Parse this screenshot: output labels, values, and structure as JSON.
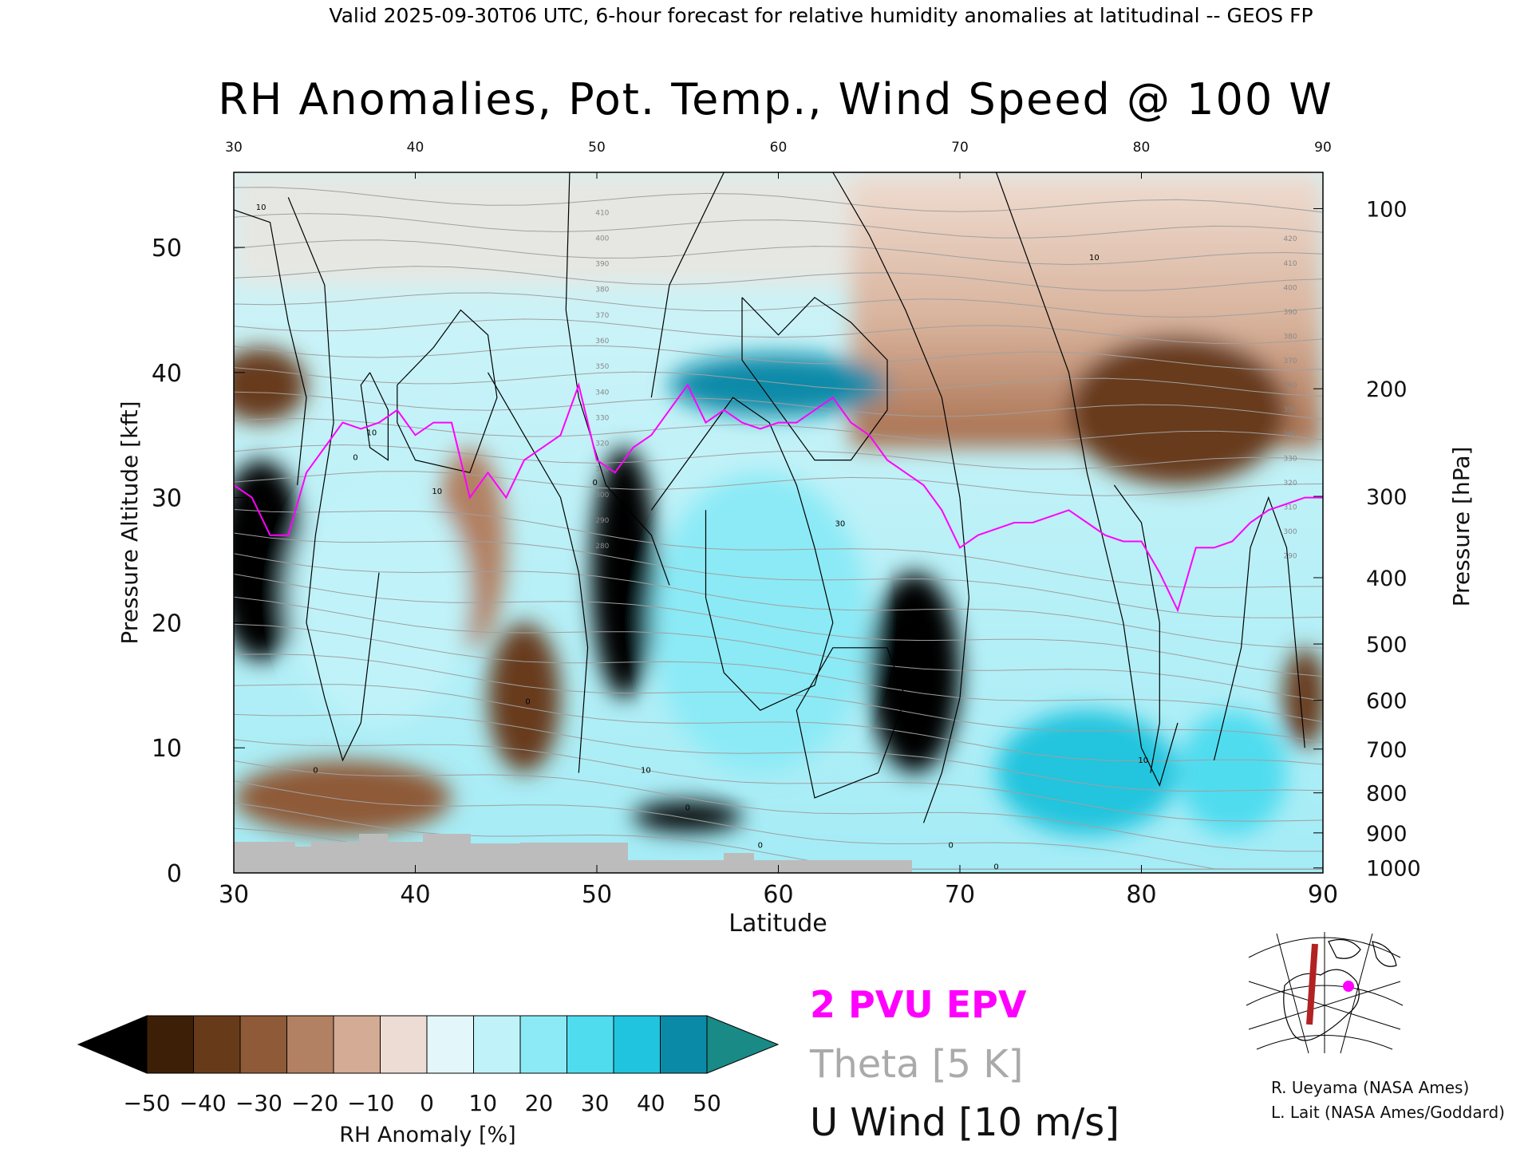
{
  "header": "Valid 2025-09-30T06 UTC, 6-hour forecast for relative humidity anomalies at latitudinal -- GEOS FP",
  "chart_data": {
    "type": "heatmap",
    "title": "RH Anomalies, Pot. Temp., Wind Speed @ 100 W",
    "xlabel": "Latitude",
    "ylabel_left": "Pressure Altitude [kft]",
    "ylabel_right": "Pressure [hPa]",
    "xlim": [
      30,
      90
    ],
    "ylim": [
      0,
      56
    ],
    "x_ticks": [
      30,
      40,
      50,
      60,
      70,
      80,
      90
    ],
    "y_ticks": [
      0,
      10,
      20,
      30,
      40,
      50
    ],
    "pressure_ticks": [
      {
        "hPa": 100,
        "kft": 53.1
      },
      {
        "hPa": 200,
        "kft": 38.7
      },
      {
        "hPa": 300,
        "kft": 30.1
      },
      {
        "hPa": 400,
        "kft": 23.6
      },
      {
        "hPa": 500,
        "kft": 18.3
      },
      {
        "hPa": 600,
        "kft": 13.8
      },
      {
        "hPa": 700,
        "kft": 9.9
      },
      {
        "hPa": 800,
        "kft": 6.4
      },
      {
        "hPa": 900,
        "kft": 3.2
      },
      {
        "hPa": 1000,
        "kft": 0.4
      }
    ],
    "colorbar": {
      "label": "RH Anomaly [%]",
      "tick_labels": [
        "−50",
        "−40",
        "−30",
        "−20",
        "−10",
        "0",
        "10",
        "20",
        "30",
        "40",
        "50"
      ],
      "colors": [
        "#000000",
        "#3d1f08",
        "#673a1a",
        "#8e5a37",
        "#b28062",
        "#d4ab95",
        "#ecdcd3",
        "#e3f7fb",
        "#c0f3f9",
        "#8beaf6",
        "#50dcef",
        "#20c4de",
        "#0b8aa8",
        "#1a8a86"
      ]
    },
    "rh_anomaly_features": [
      {
        "lat": 31.5,
        "kft": 25,
        "rh": -55,
        "spread_lat": 2.5,
        "spread_kft": 8
      },
      {
        "lat": 31.5,
        "kft": 39,
        "rh": -40,
        "spread_lat": 2.5,
        "spread_kft": 3
      },
      {
        "lat": 36,
        "kft": 6,
        "rh": -25,
        "spread_lat": 6,
        "spread_kft": 3
      },
      {
        "lat": 43,
        "kft": 26,
        "rh": -20,
        "spread_lat": 2,
        "spread_kft": 8
      },
      {
        "lat": 46,
        "kft": 14,
        "rh": -35,
        "spread_lat": 2,
        "spread_kft": 6
      },
      {
        "lat": 51.5,
        "kft": 24,
        "rh": -55,
        "spread_lat": 1.8,
        "spread_kft": 10
      },
      {
        "lat": 55,
        "kft": 4.5,
        "rh": -55,
        "spread_lat": 3,
        "spread_kft": 1.2
      },
      {
        "lat": 67.5,
        "kft": 16,
        "rh": -55,
        "spread_lat": 2.5,
        "spread_kft": 8
      },
      {
        "lat": 82,
        "kft": 37,
        "rh": -40,
        "spread_lat": 6,
        "spread_kft": 6
      },
      {
        "lat": 89,
        "kft": 14,
        "rh": -40,
        "spread_lat": 1.2,
        "spread_kft": 4
      },
      {
        "lat": 60,
        "kft": 39,
        "rh": 50,
        "spread_lat": 6,
        "spread_kft": 2.5
      },
      {
        "lat": 38,
        "kft": 22,
        "rh": 15,
        "spread_lat": 5,
        "spread_kft": 10
      },
      {
        "lat": 59,
        "kft": 20,
        "rh": 20,
        "spread_lat": 6,
        "spread_kft": 12
      },
      {
        "lat": 77,
        "kft": 8,
        "rh": 40,
        "spread_lat": 5,
        "spread_kft": 5
      },
      {
        "lat": 85,
        "kft": 8,
        "rh": 35,
        "spread_lat": 3,
        "spread_kft": 5
      }
    ],
    "overlays": [
      {
        "name": "2 PVU EPV",
        "color": "#ff00ff"
      },
      {
        "name": "Theta [5 K]",
        "color": "#aaaaaa"
      },
      {
        "name": "U Wind [10 m/s]",
        "color": "#000000"
      }
    ],
    "epv_2pvu_kft": [
      [
        30,
        31
      ],
      [
        31,
        30
      ],
      [
        32,
        27
      ],
      [
        33,
        27
      ],
      [
        34,
        32
      ],
      [
        35,
        34
      ],
      [
        36,
        36
      ],
      [
        37,
        35.5
      ],
      [
        38,
        36
      ],
      [
        39,
        37
      ],
      [
        40,
        35
      ],
      [
        41,
        36
      ],
      [
        42,
        36
      ],
      [
        43,
        30
      ],
      [
        44,
        32
      ],
      [
        45,
        30
      ],
      [
        46,
        33
      ],
      [
        47,
        34
      ],
      [
        48,
        35
      ],
      [
        49,
        39
      ],
      [
        50,
        33
      ],
      [
        51,
        32
      ],
      [
        52,
        34
      ],
      [
        53,
        35
      ],
      [
        54,
        37
      ],
      [
        55,
        39
      ],
      [
        56,
        36
      ],
      [
        57,
        37
      ],
      [
        58,
        36
      ],
      [
        59,
        35.5
      ],
      [
        60,
        36
      ],
      [
        61,
        36
      ],
      [
        62,
        37
      ],
      [
        63,
        38
      ],
      [
        64,
        36
      ],
      [
        65,
        35
      ],
      [
        66,
        33
      ],
      [
        67,
        32
      ],
      [
        68,
        31
      ],
      [
        69,
        29
      ],
      [
        70,
        26
      ],
      [
        71,
        27
      ],
      [
        72,
        27.5
      ],
      [
        73,
        28
      ],
      [
        74,
        28
      ],
      [
        75,
        28.5
      ],
      [
        76,
        29
      ],
      [
        77,
        28
      ],
      [
        78,
        27
      ],
      [
        79,
        26.5
      ],
      [
        80,
        26.5
      ],
      [
        81,
        24
      ],
      [
        82,
        21
      ],
      [
        83,
        26
      ],
      [
        84,
        26
      ],
      [
        85,
        26.5
      ],
      [
        86,
        28
      ],
      [
        87,
        29
      ],
      [
        88,
        29.5
      ],
      [
        89,
        30
      ],
      [
        90,
        30
      ]
    ],
    "theta_labels": [
      "410",
      "400",
      "390",
      "380",
      "370",
      "360",
      "350",
      "340",
      "330",
      "320",
      "310",
      "300",
      "290",
      "280",
      "420",
      "410",
      "400",
      "390",
      "380",
      "370",
      "360",
      "350",
      "340",
      "330",
      "320",
      "310",
      "300",
      "290"
    ],
    "wind_labels": [
      "10",
      "10",
      "10",
      "10",
      "0",
      "0",
      "0",
      "30",
      "10",
      "10",
      "0",
      "0",
      "0",
      "0",
      "0"
    ]
  },
  "legend": {
    "epv": "2 PVU EPV",
    "theta": "Theta [5 K]",
    "uwind": "U Wind [10 m/s]"
  },
  "credits": {
    "line1": "R. Ueyama (NASA Ames)",
    "line2": "L. Lait (NASA Ames/Goddard)"
  }
}
